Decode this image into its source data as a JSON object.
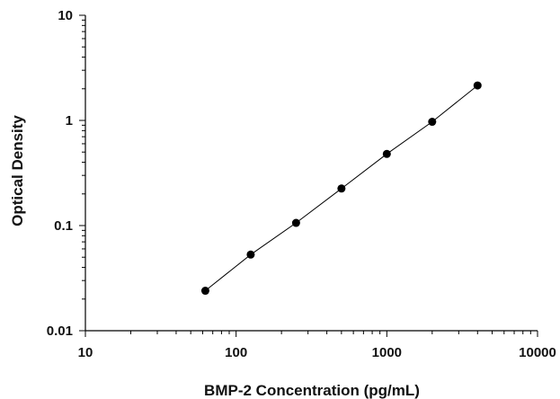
{
  "chart_data": {
    "type": "scatter",
    "title": "",
    "xlabel": "BMP-2 Concentration (pg/mL)",
    "ylabel": "Optical Density",
    "x_scale": "log",
    "y_scale": "log",
    "xlim": [
      10,
      10000
    ],
    "ylim": [
      0.01,
      10
    ],
    "x_ticks": [
      10,
      100,
      1000,
      10000
    ],
    "x_tick_labels": [
      "10",
      "100",
      "1000",
      "10000"
    ],
    "y_ticks": [
      0.01,
      0.1,
      1,
      10
    ],
    "y_tick_labels": [
      "0.01",
      "0.1",
      "1",
      "10"
    ],
    "grid": false,
    "legend": "none",
    "fit_line": true,
    "series": [
      {
        "x": [
          62.5,
          125,
          250,
          500,
          1000,
          2000,
          4000
        ],
        "y": [
          0.024,
          0.053,
          0.106,
          0.225,
          0.48,
          0.97,
          2.15
        ]
      }
    ]
  }
}
